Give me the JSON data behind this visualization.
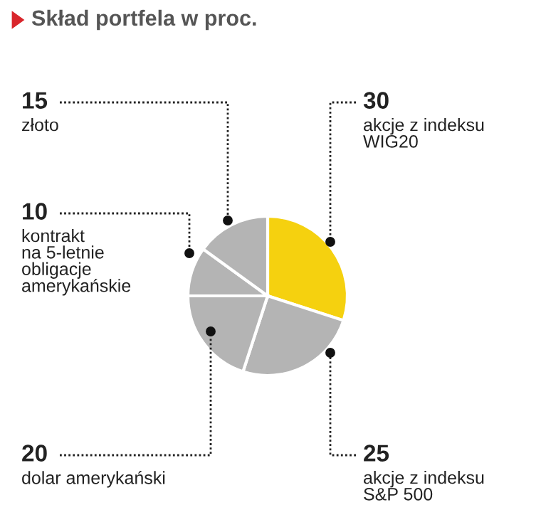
{
  "chart_data": {
    "type": "pie",
    "title": "Skład portfela w proc.",
    "categories": [
      "akcje z indeksu\nWIG20",
      "akcje z indeksu\nS&P 500",
      "dolar amerykański",
      "kontrakt\nna 5-letnie\nobligacje\namerykańskie",
      "złoto"
    ],
    "values": [
      30,
      25,
      20,
      10,
      15
    ],
    "colors": [
      "#f5d10f",
      "#b4b4b4",
      "#b4b4b4",
      "#b4b4b4",
      "#b4b4b4"
    ],
    "data_labels": true,
    "legend": false
  }
}
